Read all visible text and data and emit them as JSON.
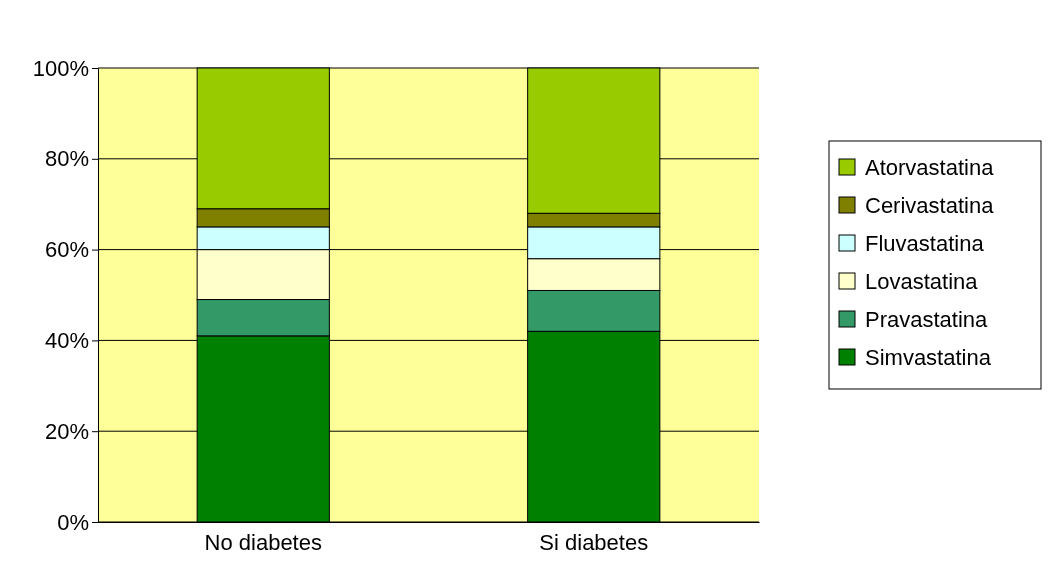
{
  "chart_data": {
    "type": "bar",
    "stacked": true,
    "categories": [
      "No diabetes",
      "Si diabetes"
    ],
    "series": [
      {
        "name": "Simvastatina",
        "color": "#008000",
        "values": [
          41,
          42
        ]
      },
      {
        "name": "Pravastatina",
        "color": "#339966",
        "values": [
          8,
          9
        ]
      },
      {
        "name": "Lovastatina",
        "color": "#ffffcc",
        "values": [
          11,
          7
        ]
      },
      {
        "name": "Fluvastatina",
        "color": "#ccffff",
        "values": [
          5,
          7
        ]
      },
      {
        "name": "Cerivastatina",
        "color": "#808000",
        "values": [
          4,
          3
        ]
      },
      {
        "name": "Atorvastatina",
        "color": "#99cc00",
        "values": [
          31,
          32
        ]
      }
    ],
    "ylim": [
      0,
      100
    ],
    "yticks": [
      {
        "value": 0,
        "label": "0%"
      },
      {
        "value": 20,
        "label": "20%"
      },
      {
        "value": 40,
        "label": "40%"
      },
      {
        "value": 60,
        "label": "60%"
      },
      {
        "value": 80,
        "label": "80%"
      },
      {
        "value": 100,
        "label": "100%"
      }
    ],
    "grid": "y",
    "legend": "right"
  }
}
